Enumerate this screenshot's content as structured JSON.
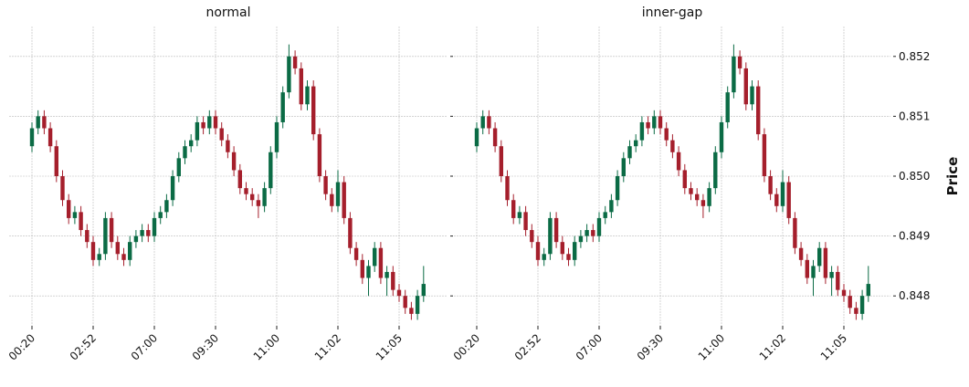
{
  "chart_data": [
    {
      "type": "candlestick",
      "title": "normal",
      "show_ytick_labels": false,
      "grid": true,
      "up_color": "#0b6b45",
      "down_color": "#a51f2c",
      "categories": [
        "00:20",
        null,
        null,
        null,
        null,
        null,
        null,
        null,
        null,
        null,
        "02:52",
        null,
        null,
        null,
        null,
        null,
        null,
        null,
        null,
        null,
        "07:00",
        null,
        null,
        null,
        null,
        null,
        null,
        null,
        null,
        null,
        "09:30",
        null,
        null,
        null,
        null,
        null,
        null,
        null,
        null,
        null,
        "11:00",
        null,
        null,
        null,
        null,
        null,
        null,
        null,
        null,
        null,
        "11:02",
        null,
        null,
        null,
        null,
        null,
        null,
        null,
        null,
        null,
        "11:05",
        null,
        null,
        null,
        null
      ],
      "open": [
        0.8505,
        0.8508,
        0.851,
        0.8508,
        0.8505,
        0.85,
        0.8496,
        0.8493,
        0.8494,
        0.8491,
        0.8489,
        0.8486,
        0.8487,
        0.8493,
        0.8489,
        0.8487,
        0.8486,
        0.8489,
        0.849,
        0.8491,
        0.849,
        0.8493,
        0.8494,
        0.8496,
        0.85,
        0.8503,
        0.8505,
        0.8506,
        0.8509,
        0.8508,
        0.851,
        0.8508,
        0.8506,
        0.8504,
        0.8501,
        0.8498,
        0.8497,
        0.8496,
        0.8495,
        0.8498,
        0.8504,
        0.8509,
        0.8514,
        0.852,
        0.8518,
        0.8512,
        0.8515,
        0.8507,
        0.85,
        0.8497,
        0.8495,
        0.8499,
        0.8493,
        0.8488,
        0.8486,
        0.8483,
        0.8485,
        0.8488,
        0.8483,
        0.8484,
        0.8481,
        0.848,
        0.8478,
        0.8477,
        0.848
      ],
      "high": [
        0.8509,
        0.8511,
        0.8511,
        0.8509,
        0.8506,
        0.8501,
        0.8497,
        0.8495,
        0.8495,
        0.8492,
        0.849,
        0.8488,
        0.8494,
        0.8494,
        0.849,
        0.8488,
        0.849,
        0.8491,
        0.8492,
        0.8492,
        0.8494,
        0.8495,
        0.8497,
        0.8501,
        0.8504,
        0.8506,
        0.8507,
        0.851,
        0.851,
        0.8511,
        0.8511,
        0.8509,
        0.8507,
        0.8505,
        0.8502,
        0.8499,
        0.8498,
        0.8497,
        0.8499,
        0.8505,
        0.851,
        0.8515,
        0.8522,
        0.8521,
        0.8519,
        0.8516,
        0.8516,
        0.8508,
        0.8501,
        0.8498,
        0.8501,
        0.85,
        0.8494,
        0.8489,
        0.8487,
        0.8486,
        0.8489,
        0.8489,
        0.8485,
        0.8485,
        0.8482,
        0.8481,
        0.8479,
        0.8481,
        0.8485
      ],
      "low": [
        0.8504,
        0.8507,
        0.8507,
        0.8504,
        0.8499,
        0.8495,
        0.8492,
        0.8492,
        0.849,
        0.8488,
        0.8485,
        0.8485,
        0.8486,
        0.8488,
        0.8486,
        0.8485,
        0.8485,
        0.8488,
        0.8489,
        0.8489,
        0.8489,
        0.8492,
        0.8493,
        0.8495,
        0.8499,
        0.8502,
        0.8504,
        0.8505,
        0.8507,
        0.8507,
        0.8507,
        0.8505,
        0.8503,
        0.85,
        0.8497,
        0.8496,
        0.8495,
        0.8493,
        0.8494,
        0.8497,
        0.8503,
        0.8508,
        0.8513,
        0.8517,
        0.8511,
        0.8511,
        0.8506,
        0.8499,
        0.8496,
        0.8494,
        0.8494,
        0.8492,
        0.8487,
        0.8485,
        0.8482,
        0.848,
        0.8484,
        0.8482,
        0.848,
        0.848,
        0.8479,
        0.8477,
        0.8476,
        0.8476,
        0.8479
      ],
      "close": [
        0.8508,
        0.851,
        0.8508,
        0.8505,
        0.85,
        0.8496,
        0.8493,
        0.8494,
        0.8491,
        0.8489,
        0.8486,
        0.8487,
        0.8493,
        0.8489,
        0.8487,
        0.8486,
        0.8489,
        0.849,
        0.8491,
        0.849,
        0.8493,
        0.8494,
        0.8496,
        0.85,
        0.8503,
        0.8505,
        0.8506,
        0.8509,
        0.8508,
        0.851,
        0.8508,
        0.8506,
        0.8504,
        0.8501,
        0.8498,
        0.8497,
        0.8496,
        0.8495,
        0.8498,
        0.8504,
        0.8509,
        0.8514,
        0.852,
        0.8518,
        0.8512,
        0.8515,
        0.8507,
        0.85,
        0.8497,
        0.8495,
        0.8499,
        0.8493,
        0.8488,
        0.8486,
        0.8483,
        0.8485,
        0.8488,
        0.8483,
        0.8484,
        0.8481,
        0.848,
        0.8478,
        0.8477,
        0.848,
        0.8482
      ],
      "ylim": [
        0.8475,
        0.8525
      ],
      "yticks": [
        0.848,
        0.849,
        {
          "value": 0.85,
          "label": "0.850"
        },
        0.851,
        0.852
      ]
    },
    {
      "type": "candlestick",
      "title": "inner-gap",
      "ylabel": "Price",
      "show_ytick_labels": true,
      "grid": true,
      "up_color": "#0b6b45",
      "down_color": "#a51f2c",
      "categories": [
        "00:20",
        null,
        null,
        null,
        null,
        null,
        null,
        null,
        null,
        null,
        "02:52",
        null,
        null,
        null,
        null,
        null,
        null,
        null,
        null,
        null,
        "07:00",
        null,
        null,
        null,
        null,
        null,
        null,
        null,
        null,
        null,
        "09:30",
        null,
        null,
        null,
        null,
        null,
        null,
        null,
        null,
        null,
        "11:00",
        null,
        null,
        null,
        null,
        null,
        null,
        null,
        null,
        null,
        "11:02",
        null,
        null,
        null,
        null,
        null,
        null,
        null,
        null,
        null,
        "11:05",
        null,
        null,
        null,
        null
      ],
      "open": [
        0.8505,
        0.8508,
        0.851,
        0.8508,
        0.8505,
        0.85,
        0.8496,
        0.8493,
        0.8494,
        0.8491,
        0.8489,
        0.8486,
        0.8487,
        0.8493,
        0.8489,
        0.8487,
        0.8486,
        0.8489,
        0.849,
        0.8491,
        0.849,
        0.8493,
        0.8494,
        0.8496,
        0.85,
        0.8503,
        0.8505,
        0.8506,
        0.8509,
        0.8508,
        0.851,
        0.8508,
        0.8506,
        0.8504,
        0.8501,
        0.8498,
        0.8497,
        0.8496,
        0.8495,
        0.8498,
        0.8504,
        0.8509,
        0.8514,
        0.852,
        0.8518,
        0.8512,
        0.8515,
        0.8507,
        0.85,
        0.8497,
        0.8495,
        0.8499,
        0.8493,
        0.8488,
        0.8486,
        0.8483,
        0.8485,
        0.8488,
        0.8483,
        0.8484,
        0.8481,
        0.848,
        0.8478,
        0.8477,
        0.848
      ],
      "high": [
        0.8509,
        0.8511,
        0.8511,
        0.8509,
        0.8506,
        0.8501,
        0.8497,
        0.8495,
        0.8495,
        0.8492,
        0.849,
        0.8488,
        0.8494,
        0.8494,
        0.849,
        0.8488,
        0.849,
        0.8491,
        0.8492,
        0.8492,
        0.8494,
        0.8495,
        0.8497,
        0.8501,
        0.8504,
        0.8506,
        0.8507,
        0.851,
        0.851,
        0.8511,
        0.8511,
        0.8509,
        0.8507,
        0.8505,
        0.8502,
        0.8499,
        0.8498,
        0.8497,
        0.8499,
        0.8505,
        0.851,
        0.8515,
        0.8522,
        0.8521,
        0.8519,
        0.8516,
        0.8516,
        0.8508,
        0.8501,
        0.8498,
        0.8501,
        0.85,
        0.8494,
        0.8489,
        0.8487,
        0.8486,
        0.8489,
        0.8489,
        0.8485,
        0.8485,
        0.8482,
        0.8481,
        0.8479,
        0.8481,
        0.8485
      ],
      "low": [
        0.8504,
        0.8507,
        0.8507,
        0.8504,
        0.8499,
        0.8495,
        0.8492,
        0.8492,
        0.849,
        0.8488,
        0.8485,
        0.8485,
        0.8486,
        0.8488,
        0.8486,
        0.8485,
        0.8485,
        0.8488,
        0.8489,
        0.8489,
        0.8489,
        0.8492,
        0.8493,
        0.8495,
        0.8499,
        0.8502,
        0.8504,
        0.8505,
        0.8507,
        0.8507,
        0.8507,
        0.8505,
        0.8503,
        0.85,
        0.8497,
        0.8496,
        0.8495,
        0.8493,
        0.8494,
        0.8497,
        0.8503,
        0.8508,
        0.8513,
        0.8517,
        0.8511,
        0.8511,
        0.8506,
        0.8499,
        0.8496,
        0.8494,
        0.8494,
        0.8492,
        0.8487,
        0.8485,
        0.8482,
        0.848,
        0.8484,
        0.8482,
        0.848,
        0.848,
        0.8479,
        0.8477,
        0.8476,
        0.8476,
        0.8479
      ],
      "close": [
        0.8508,
        0.851,
        0.8508,
        0.8505,
        0.85,
        0.8496,
        0.8493,
        0.8494,
        0.8491,
        0.8489,
        0.8486,
        0.8487,
        0.8493,
        0.8489,
        0.8487,
        0.8486,
        0.8489,
        0.849,
        0.8491,
        0.849,
        0.8493,
        0.8494,
        0.8496,
        0.85,
        0.8503,
        0.8505,
        0.8506,
        0.8509,
        0.8508,
        0.851,
        0.8508,
        0.8506,
        0.8504,
        0.8501,
        0.8498,
        0.8497,
        0.8496,
        0.8495,
        0.8498,
        0.8504,
        0.8509,
        0.8514,
        0.852,
        0.8518,
        0.8512,
        0.8515,
        0.8507,
        0.85,
        0.8497,
        0.8495,
        0.8499,
        0.8493,
        0.8488,
        0.8486,
        0.8483,
        0.8485,
        0.8488,
        0.8483,
        0.8484,
        0.8481,
        0.848,
        0.8478,
        0.8477,
        0.848,
        0.8482
      ],
      "ylim": [
        0.8475,
        0.8525
      ],
      "yticks": [
        0.848,
        0.849,
        {
          "value": 0.85,
          "label": "0.850"
        },
        0.851,
        0.852
      ]
    }
  ]
}
